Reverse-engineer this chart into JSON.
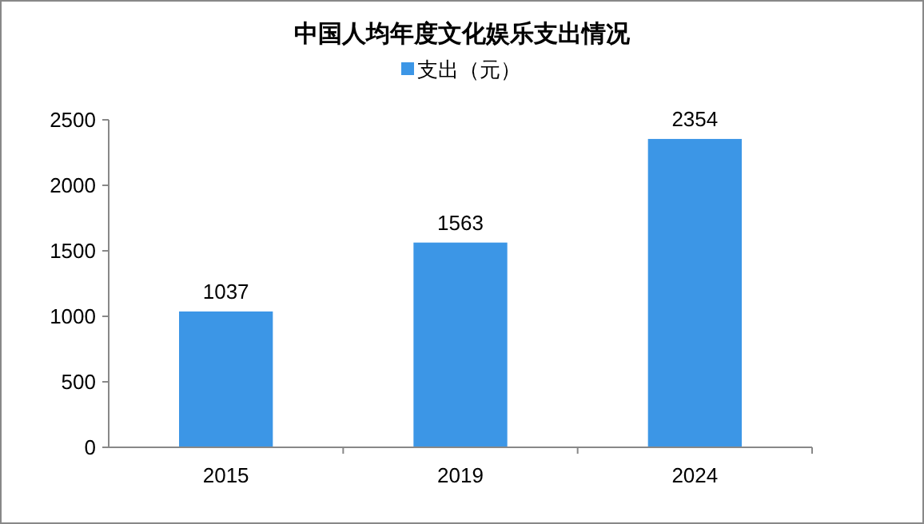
{
  "chart_data": {
    "type": "bar",
    "title": "中国人均年度文化娱乐支出情况",
    "categories": [
      "2015",
      "2019",
      "2024"
    ],
    "series": [
      {
        "name": "支出（元）",
        "color": "#3c96e6",
        "values": [
          1037,
          1563,
          2354
        ]
      }
    ],
    "ylim": [
      0,
      2500
    ],
    "yticks": [
      0,
      500,
      1000,
      1500,
      2000,
      2500
    ],
    "grid": false,
    "legend": "top",
    "data_labels": true
  }
}
